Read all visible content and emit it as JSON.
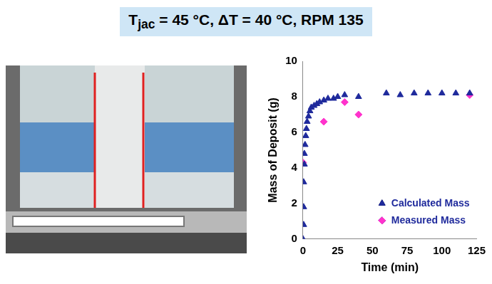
{
  "header": {
    "text": "T",
    "subscript": "jac",
    "rest": " = 45 °C, ΔT = 40 °C, RPM 135"
  },
  "chart_data": {
    "type": "scatter",
    "x_label": "Time (min)",
    "y_label": "Mass of Deposit (g)",
    "xlim": [
      0,
      125
    ],
    "xticks": [
      0,
      25,
      50,
      75,
      100,
      125
    ],
    "ylim": [
      0,
      10
    ],
    "yticks": [
      0,
      2,
      4,
      6,
      8,
      10
    ],
    "grid": false,
    "legend": "lower right",
    "series": [
      {
        "name": "Calculated Mass",
        "color": "#1f2a9c",
        "marker": "triangle",
        "x": [
          0,
          0.5,
          0.5,
          0.5,
          1,
          1,
          1.5,
          2,
          2.5,
          3,
          4,
          5,
          6,
          8,
          10,
          12,
          15,
          18,
          22,
          25,
          30,
          40,
          60,
          70,
          80,
          90,
          100,
          110,
          120
        ],
        "values": [
          0,
          0.8,
          1.8,
          3.2,
          4.2,
          4.8,
          5.3,
          5.8,
          6.2,
          6.6,
          6.9,
          7.2,
          7.4,
          7.5,
          7.6,
          7.7,
          7.8,
          7.9,
          7.9,
          8.0,
          8.1,
          8.0,
          8.2,
          8.1,
          8.2,
          8.2,
          8.2,
          8.2,
          8.2
        ]
      },
      {
        "name": "Measured Mass",
        "color": "#ff33cc",
        "marker": "diamond",
        "x": [
          0,
          15,
          30,
          40,
          120
        ],
        "values": [
          4.3,
          6.6,
          7.7,
          7.0,
          8.1
        ]
      }
    ]
  }
}
